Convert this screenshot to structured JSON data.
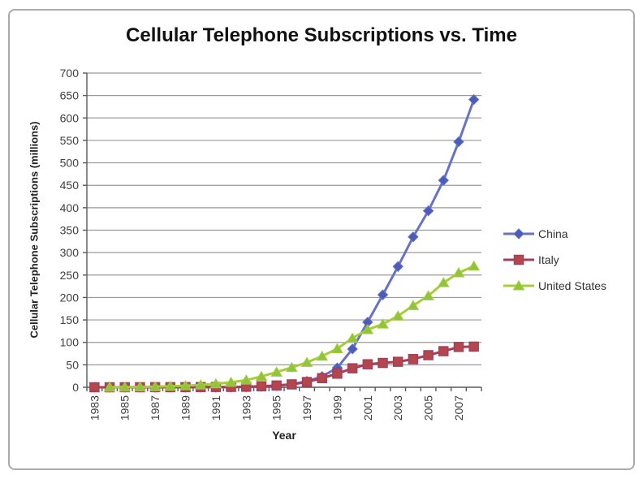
{
  "window": {
    "border_color": "#ababab",
    "background_color": "#ffffff"
  },
  "chart_data": {
    "type": "line",
    "title": "Cellular Telephone Subscriptions vs. Time",
    "xlabel": "Year",
    "ylabel": "Cellular Telephone Subscriptions (millions)",
    "ylim": [
      0,
      700
    ],
    "ytick_step": 50,
    "grid": "horizontal",
    "grid_color": "#9a9a9a",
    "axis_color": "#595959",
    "tick_label_color": "#3f3f3f",
    "legend_position": "right",
    "x": [
      1983,
      1984,
      1985,
      1986,
      1987,
      1988,
      1989,
      1990,
      1991,
      1992,
      1993,
      1994,
      1995,
      1996,
      1997,
      1998,
      1999,
      2000,
      2001,
      2002,
      2003,
      2004,
      2005,
      2006,
      2007,
      2008
    ],
    "xtick_labels": [
      "1983",
      "1985",
      "1987",
      "1989",
      "1991",
      "1993",
      "1995",
      "1997",
      "1999",
      "2001",
      "2003",
      "2005",
      "2007"
    ],
    "series": [
      {
        "name": "China",
        "marker": "diamond",
        "line_color": "#6672c6",
        "marker_color": "#4b5db9",
        "values": [
          0,
          0,
          0,
          0,
          0,
          0,
          0,
          0.1,
          0.1,
          0.2,
          0.6,
          1.6,
          3.6,
          6.9,
          13.2,
          23.9,
          43.3,
          85.3,
          145,
          206,
          269,
          335,
          393,
          461,
          547,
          641
        ]
      },
      {
        "name": "Italy",
        "marker": "square",
        "line_color": "#a43e5c",
        "marker_color": "#b4474c",
        "values": [
          0,
          0,
          0.1,
          0.1,
          0.2,
          0.2,
          0.3,
          0.4,
          0.6,
          0.8,
          1.2,
          2.2,
          3.9,
          6.4,
          11.7,
          20.3,
          30.3,
          42.2,
          51.2,
          54.2,
          56.8,
          62.8,
          71.5,
          80.4,
          89.8,
          90.6
        ]
      },
      {
        "name": "United States",
        "marker": "triangle",
        "line_color": "#a5cd3a",
        "marker_color": "#8fc53c",
        "values": [
          null,
          0.1,
          0.3,
          0.7,
          1.2,
          2.1,
          3.5,
          5.3,
          7.6,
          11,
          16,
          24.1,
          33.8,
          44,
          55.3,
          69.2,
          86,
          109.5,
          128.4,
          140.8,
          158.7,
          182.1,
          203.7,
          233,
          255,
          270
        ]
      }
    ]
  }
}
